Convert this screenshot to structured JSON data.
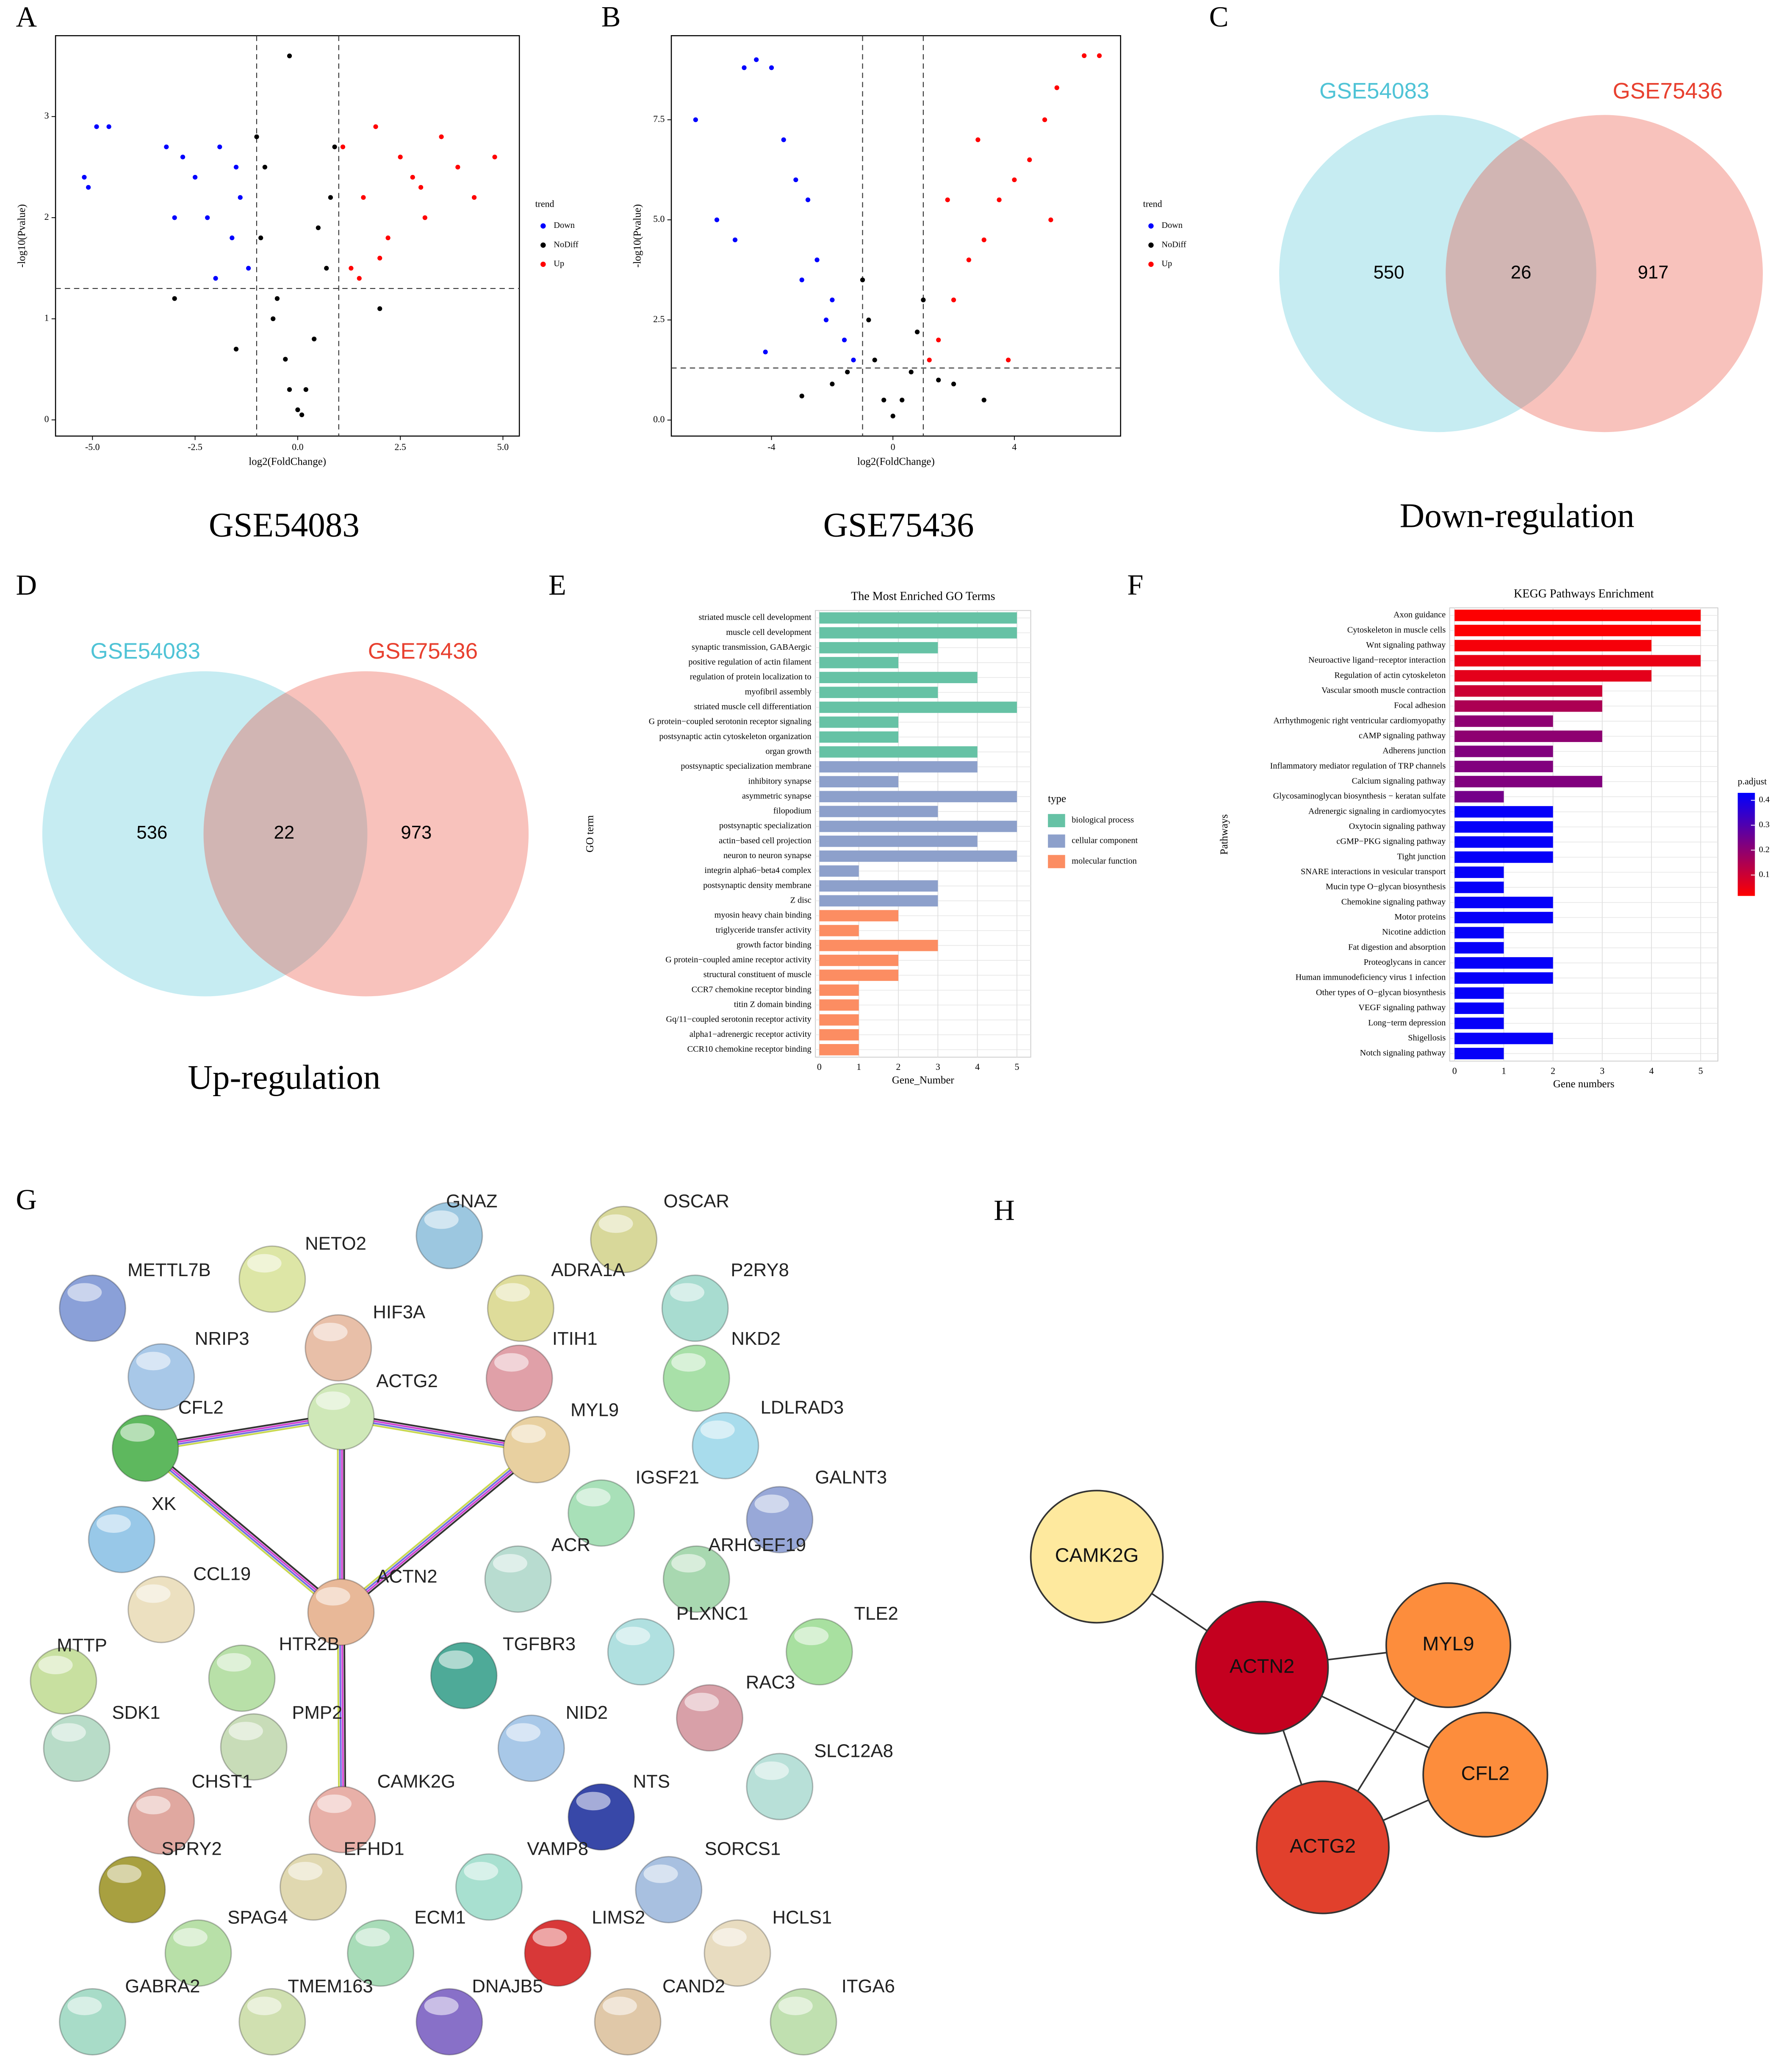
{
  "chart_data": [
    {
      "type": "scatter",
      "panel": "A",
      "caption": "GSE54083",
      "xlabel": "log2(FoldChange)",
      "ylabel": "-log10(Pvalue)",
      "xlim": [
        -5.9,
        5.4
      ],
      "ylim": [
        -0.16,
        3.8
      ],
      "xticks": [
        {
          "value": -5,
          "label": "-5.0"
        },
        -2.5,
        {
          "value": 0,
          "label": "0.0"
        },
        2.5,
        {
          "value": 5,
          "label": "5.0"
        }
      ],
      "yticks": [
        0,
        1,
        2,
        3
      ],
      "threshold_x": [
        -1,
        1
      ],
      "threshold_y": 1.3,
      "legend_title": "trend",
      "series": [
        {
          "name": "Down",
          "color": "#0000ff",
          "x": [
            -5.2,
            -5.1,
            -4.9,
            -4.6,
            -3.2,
            -2.8,
            -2.5,
            -2.2,
            -1.9,
            -1.6,
            -1.4,
            -1.2,
            -2.0,
            -1.5,
            -3.0
          ],
          "y": [
            2.4,
            2.3,
            2.9,
            2.9,
            2.7,
            2.6,
            2.4,
            2.0,
            2.7,
            1.8,
            2.2,
            1.5,
            1.4,
            2.5,
            2.0
          ]
        },
        {
          "name": "NoDiff",
          "color": "#000000",
          "x": [
            -1.0,
            -0.8,
            -0.5,
            -0.3,
            0,
            0.2,
            0.4,
            0.7,
            0.9,
            -0.6,
            0.5,
            -0.2,
            0.1,
            -0.9,
            0.8,
            -3.0,
            2.0,
            -1.5,
            -0.2
          ],
          "y": [
            2.8,
            2.5,
            1.2,
            0.6,
            0.1,
            0.3,
            0.8,
            1.5,
            2.7,
            1.0,
            1.9,
            0.3,
            0.05,
            1.8,
            2.2,
            1.2,
            1.1,
            0.7,
            3.6
          ]
        },
        {
          "name": "Up",
          "color": "#ff0000",
          "x": [
            1.1,
            1.3,
            1.6,
            1.9,
            2.2,
            2.5,
            2.8,
            3.1,
            3.5,
            3.9,
            4.3,
            4.8,
            1.5,
            2.0,
            3.0
          ],
          "y": [
            2.7,
            1.5,
            2.2,
            2.9,
            1.8,
            2.6,
            2.4,
            2.0,
            2.8,
            2.5,
            2.2,
            2.6,
            1.4,
            1.6,
            2.3
          ]
        }
      ]
    },
    {
      "type": "scatter",
      "panel": "B",
      "caption": "GSE75436",
      "xlabel": "log2(FoldChange)",
      "ylabel": "-log10(Pvalue)",
      "xlim": [
        -7.3,
        7.5
      ],
      "ylim": [
        -0.4,
        9.6
      ],
      "xticks": [
        -4,
        0,
        4
      ],
      "yticks": [
        {
          "value": 0,
          "label": "0.0"
        },
        2.5,
        {
          "value": 5,
          "label": "5.0"
        },
        7.5
      ],
      "threshold_x": [
        -1,
        1
      ],
      "threshold_y": 1.3,
      "legend_title": "trend",
      "series": [
        {
          "name": "Down",
          "color": "#0000ff",
          "x": [
            -6.5,
            -5.8,
            -5.2,
            -4.9,
            -4.5,
            -4.0,
            -3.6,
            -3.2,
            -2.8,
            -2.5,
            -2.0,
            -1.6,
            -1.3,
            -4.2,
            -3.0,
            -2.2
          ],
          "y": [
            7.5,
            5.0,
            4.5,
            8.8,
            9.0,
            8.8,
            7.0,
            6.0,
            5.5,
            4.0,
            3.0,
            2.0,
            1.5,
            1.7,
            3.5,
            2.5
          ]
        },
        {
          "name": "NoDiff",
          "color": "#000000",
          "x": [
            -1.5,
            -1,
            -0.6,
            -0.3,
            0,
            0.3,
            0.6,
            1,
            1.5,
            2,
            -2,
            3,
            -3,
            0.8,
            -0.8
          ],
          "y": [
            1.2,
            3.5,
            1.5,
            0.5,
            0.1,
            0.5,
            1.2,
            3.0,
            1.0,
            0.9,
            0.9,
            0.5,
            0.6,
            2.2,
            2.5
          ]
        },
        {
          "name": "Up",
          "color": "#ff0000",
          "x": [
            6.3,
            6.8,
            5.4,
            5.0,
            5.2,
            4.5,
            4.0,
            3.5,
            3.0,
            2.5,
            2.0,
            1.5,
            1.2,
            3.8,
            2.8,
            1.8
          ],
          "y": [
            9.1,
            9.1,
            8.3,
            7.5,
            5.0,
            6.5,
            6.0,
            5.5,
            4.5,
            4.0,
            3.0,
            2.0,
            1.5,
            1.5,
            7.0,
            5.5
          ]
        }
      ]
    },
    {
      "type": "venn",
      "panel": "C",
      "caption": "Down-regulation",
      "sets": [
        {
          "name": "GSE54083",
          "color": "#4fc3d6"
        },
        {
          "name": "GSE75436",
          "color": "#e8402f"
        }
      ],
      "values": [
        550,
        26,
        917
      ]
    },
    {
      "type": "venn",
      "panel": "D",
      "caption": "Up-regulation",
      "sets": [
        {
          "name": "GSE54083",
          "color": "#4fc3d6"
        },
        {
          "name": "GSE75436",
          "color": "#e8402f"
        }
      ],
      "values": [
        536,
        22,
        973
      ]
    },
    {
      "type": "barh",
      "panel": "E",
      "title": "The Most Enriched GO Terms",
      "xlabel": "Gene_Number",
      "ylabel": "GO term",
      "legend_title": "type",
      "xlim": [
        -0.1,
        5.35
      ],
      "xticks": [
        0,
        1,
        2,
        3,
        4,
        5
      ],
      "categories": [
        "striated muscle cell development",
        "muscle cell development",
        "synaptic transmission, GABAergic",
        "positive regulation of actin filament",
        "regulation of protein localization to",
        "myofibril assembly",
        "striated muscle cell differentiation",
        "G protein−coupled serotonin receptor signaling",
        "postsynaptic actin cytoskeleton organization",
        "organ growth",
        "postsynaptic specialization membrane",
        "inhibitory synapse",
        "asymmetric synapse",
        "filopodium",
        "postsynaptic specialization",
        "actin−based cell projection",
        "neuron to neuron synapse",
        "integrin alpha6−beta4 complex",
        "postsynaptic density membrane",
        "Z disc",
        "myosin heavy chain binding",
        "triglyceride transfer activity",
        "growth factor binding",
        "G protein−coupled amine receptor activity",
        "structural constituent of muscle",
        "CCR7 chemokine receptor binding",
        "titin Z domain binding",
        "Gq/11−coupled serotonin receptor activity",
        "alpha1−adrenergic receptor activity",
        "CCR10 chemokine receptor binding"
      ],
      "series": [
        {
          "name": "biological process",
          "color": "#66c2a5",
          "values": [
            5,
            5,
            3,
            2,
            4,
            3,
            5,
            2,
            2,
            4,
            null,
            null,
            null,
            null,
            null,
            null,
            null,
            null,
            null,
            null,
            null,
            null,
            null,
            null,
            null,
            null,
            null,
            null,
            null,
            null
          ]
        },
        {
          "name": "cellular component",
          "color": "#8da0cb",
          "values": [
            null,
            null,
            null,
            null,
            null,
            null,
            null,
            null,
            null,
            null,
            4,
            2,
            5,
            3,
            5,
            4,
            5,
            1,
            3,
            3,
            null,
            null,
            null,
            null,
            null,
            null,
            null,
            null,
            null,
            null
          ]
        },
        {
          "name": "molecular function",
          "color": "#fc8d62",
          "values": [
            null,
            null,
            null,
            null,
            null,
            null,
            null,
            null,
            null,
            null,
            null,
            null,
            null,
            null,
            null,
            null,
            null,
            null,
            null,
            null,
            2,
            1,
            3,
            2,
            2,
            1,
            1,
            1,
            1,
            1
          ]
        }
      ]
    },
    {
      "type": "barh",
      "panel": "F",
      "title": "KEGG Pathways Enrichment",
      "xlabel": "Gene numbers",
      "ylabel": "Pathways",
      "legend_title": "p.adjust",
      "xlim": [
        -0.1,
        5.35
      ],
      "xticks": [
        0,
        1,
        2,
        3,
        4,
        5
      ],
      "categories": [
        "Axon guidance",
        "Cytoskeleton in muscle cells",
        "Wnt signaling pathway",
        "Neuroactive ligand−receptor interaction",
        "Regulation of actin cytoskeleton",
        "Vascular smooth muscle contraction",
        "Focal adhesion",
        "Arrhythmogenic right ventricular cardiomyopathy",
        "cAMP signaling pathway",
        "Adherens junction",
        "Inflammatory mediator regulation of TRP channels",
        "Calcium signaling pathway",
        "Glycosaminoglycan biosynthesis − keratan sulfate",
        "Adrenergic signaling in cardiomyocytes",
        "Oxytocin signaling pathway",
        "cGMP−PKG signaling pathway",
        "Tight junction",
        "SNARE interactions in vesicular transport",
        "Mucin type O−glycan biosynthesis",
        "Chemokine signaling pathway",
        "Motor proteins",
        "Nicotine addiction",
        "Fat digestion and absorption",
        "Proteoglycans in cancer",
        "Human immunodeficiency virus 1 infection",
        "Other types of O−glycan biosynthesis",
        "VEGF signaling pathway",
        "Long−term depression",
        "Shigellosis",
        "Notch signaling pathway"
      ],
      "values": [
        5,
        5,
        4,
        5,
        4,
        3,
        3,
        2,
        3,
        2,
        2,
        3,
        1,
        2,
        2,
        2,
        2,
        1,
        1,
        2,
        2,
        1,
        1,
        2,
        2,
        1,
        1,
        1,
        2,
        1
      ],
      "p_adjust": [
        0.02,
        0.02,
        0.03,
        0.05,
        0.06,
        0.1,
        0.15,
        0.2,
        0.2,
        0.22,
        0.22,
        0.22,
        0.24,
        0.42,
        0.42,
        0.42,
        0.42,
        0.42,
        0.42,
        0.42,
        0.42,
        0.42,
        0.42,
        0.42,
        0.42,
        0.42,
        0.42,
        0.42,
        0.42,
        0.42
      ],
      "color_scale": [
        "#ff0000",
        "#0000ff"
      ],
      "clim": [
        0.016,
        0.43
      ],
      "cticks": [
        0.1,
        0.2,
        0.3,
        0.4
      ]
    },
    {
      "type": "network",
      "panel": "G",
      "nodes": [
        {
          "label": "GNAZ",
          "color": "#9cc7e0"
        },
        {
          "label": "OSCAR",
          "color": "#d8d89a"
        },
        {
          "label": "METTL7B",
          "color": "#8aa0d8"
        },
        {
          "label": "NETO2",
          "color": "#dde6a6"
        },
        {
          "label": "ADRA1A",
          "color": "#dedc9a"
        },
        {
          "label": "P2RY8",
          "color": "#a8dcd0"
        },
        {
          "label": "HIF3A",
          "color": "#e8bfa8"
        },
        {
          "label": "NRIP3",
          "color": "#a8c8e8"
        },
        {
          "label": "ITIH1",
          "color": "#e0a0a8"
        },
        {
          "label": "NKD2",
          "color": "#a8e0a8"
        },
        {
          "label": "ACTG2",
          "color": "#cfe8b8"
        },
        {
          "label": "CFL2",
          "color": "#5eb85e"
        },
        {
          "label": "MYL9",
          "color": "#e8d0a0"
        },
        {
          "label": "LDLRAD3",
          "color": "#a8dcec"
        },
        {
          "label": "IGSF21",
          "color": "#a8e0b8"
        },
        {
          "label": "GALNT3",
          "color": "#98a8d8"
        },
        {
          "label": "XK",
          "color": "#98c8e8"
        },
        {
          "label": "ACR",
          "color": "#b8dcd0"
        },
        {
          "label": "ARHGEF19",
          "color": "#a8d8b0"
        },
        {
          "label": "CCL19",
          "color": "#ece0c0"
        },
        {
          "label": "ACTN2",
          "color": "#e8b898"
        },
        {
          "label": "MTTP",
          "color": "#c8e0a0"
        },
        {
          "label": "HTR2B",
          "color": "#b8e0a8"
        },
        {
          "label": "TGFBR3",
          "color": "#4eaa98"
        },
        {
          "label": "PLXNC1",
          "color": "#b0e0e0"
        },
        {
          "label": "TLE2",
          "color": "#a8e0a0"
        },
        {
          "label": "SDK1",
          "color": "#b8dcc8"
        },
        {
          "label": "PMP2",
          "color": "#c8dcb8"
        },
        {
          "label": "NID2",
          "color": "#a8c8e8"
        },
        {
          "label": "RAC3",
          "color": "#d8a0a8"
        },
        {
          "label": "CHST1",
          "color": "#e0a8a0"
        },
        {
          "label": "CAMK2G",
          "color": "#e8b0a8"
        },
        {
          "label": "NTS",
          "color": "#3848a8"
        },
        {
          "label": "SLC12A8",
          "color": "#b8e0d8"
        },
        {
          "label": "SPRY2",
          "color": "#a8a040"
        },
        {
          "label": "EFHD1",
          "color": "#e0d8b0"
        },
        {
          "label": "VAMP8",
          "color": "#a8e0d0"
        },
        {
          "label": "SORCS1",
          "color": "#a8c0e0"
        },
        {
          "label": "SPAG4",
          "color": "#b8e0a8"
        },
        {
          "label": "ECM1",
          "color": "#a8dcb8"
        },
        {
          "label": "LIMS2",
          "color": "#d83838"
        },
        {
          "label": "HCLS1",
          "color": "#e8dcc0"
        },
        {
          "label": "GABRA2",
          "color": "#a8dcc8"
        },
        {
          "label": "TMEM163",
          "color": "#d0e0b0"
        },
        {
          "label": "DNAJB5",
          "color": "#8870c8"
        },
        {
          "label": "CAND2",
          "color": "#e0c8a8"
        },
        {
          "label": "ITGA6",
          "color": "#c0e0b0"
        }
      ],
      "edges": [
        [
          "CFL2",
          "ACTG2"
        ],
        [
          "CFL2",
          "ACTN2"
        ],
        [
          "ACTG2",
          "MYL9"
        ],
        [
          "ACTG2",
          "ACTN2"
        ],
        [
          "MYL9",
          "ACTN2"
        ],
        [
          "ACTN2",
          "CAMK2G"
        ]
      ]
    },
    {
      "type": "network",
      "panel": "H",
      "nodes": [
        {
          "label": "CAMK2G",
          "color": "#fee99e"
        },
        {
          "label": "ACTN2",
          "color": "#c4001f"
        },
        {
          "label": "MYL9",
          "color": "#fd8d3c"
        },
        {
          "label": "CFL2",
          "color": "#fd8d3c"
        },
        {
          "label": "ACTG2",
          "color": "#e1402c"
        }
      ],
      "edges": [
        [
          "CAMK2G",
          "ACTN2"
        ],
        [
          "ACTN2",
          "MYL9"
        ],
        [
          "ACTN2",
          "CFL2"
        ],
        [
          "ACTN2",
          "ACTG2"
        ],
        [
          "ACTG2",
          "MYL9"
        ],
        [
          "ACTG2",
          "CFL2"
        ]
      ]
    }
  ]
}
